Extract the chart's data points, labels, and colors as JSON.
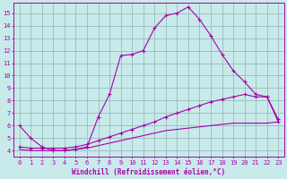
{
  "xlabel": "Windchill (Refroidissement éolien,°C)",
  "xlim": [
    -0.5,
    23.5
  ],
  "ylim": [
    3.5,
    15.8
  ],
  "xticks": [
    0,
    1,
    2,
    3,
    4,
    5,
    6,
    7,
    8,
    9,
    10,
    11,
    12,
    13,
    14,
    15,
    16,
    17,
    18,
    19,
    20,
    21,
    22,
    23
  ],
  "yticks": [
    4,
    5,
    6,
    7,
    8,
    9,
    10,
    11,
    12,
    13,
    14,
    15
  ],
  "bg_color": "#c8eaea",
  "grid_color": "#99bbbb",
  "line_color": "#aa00aa",
  "curve1_x": [
    0,
    1,
    2,
    3,
    4,
    5,
    6,
    7,
    8,
    9,
    10,
    11,
    12,
    13,
    14,
    15,
    16,
    17,
    18,
    19,
    20,
    21,
    22,
    23
  ],
  "curve1_y": [
    6.0,
    5.0,
    4.3,
    4.0,
    4.0,
    4.1,
    4.3,
    6.7,
    8.5,
    11.6,
    11.7,
    12.0,
    13.8,
    14.8,
    15.0,
    15.5,
    14.5,
    13.2,
    11.7,
    10.4,
    9.5,
    8.5,
    8.3,
    6.5
  ],
  "curve2_x": [
    0,
    1,
    2,
    3,
    4,
    5,
    6,
    7,
    8,
    9,
    10,
    11,
    12,
    13,
    14,
    15,
    16,
    17,
    18,
    19,
    20,
    21,
    22,
    23
  ],
  "curve2_y": [
    4.3,
    4.2,
    4.2,
    4.2,
    4.2,
    4.3,
    4.5,
    4.8,
    5.1,
    5.4,
    5.7,
    6.0,
    6.3,
    6.7,
    7.0,
    7.3,
    7.6,
    7.9,
    8.1,
    8.3,
    8.5,
    8.3,
    8.3,
    6.3
  ],
  "curve3_x": [
    0,
    1,
    2,
    3,
    4,
    5,
    6,
    7,
    8,
    9,
    10,
    11,
    12,
    13,
    14,
    15,
    16,
    17,
    18,
    19,
    20,
    21,
    22,
    23
  ],
  "curve3_y": [
    4.1,
    4.0,
    4.0,
    4.0,
    4.0,
    4.1,
    4.2,
    4.4,
    4.6,
    4.8,
    5.0,
    5.2,
    5.4,
    5.6,
    5.7,
    5.8,
    5.9,
    6.0,
    6.1,
    6.2,
    6.2,
    6.2,
    6.2,
    6.3
  ],
  "curve2_markers": true,
  "curve3_markers": false,
  "xlabel_fontsize": 5.5,
  "tick_fontsize": 5.0
}
